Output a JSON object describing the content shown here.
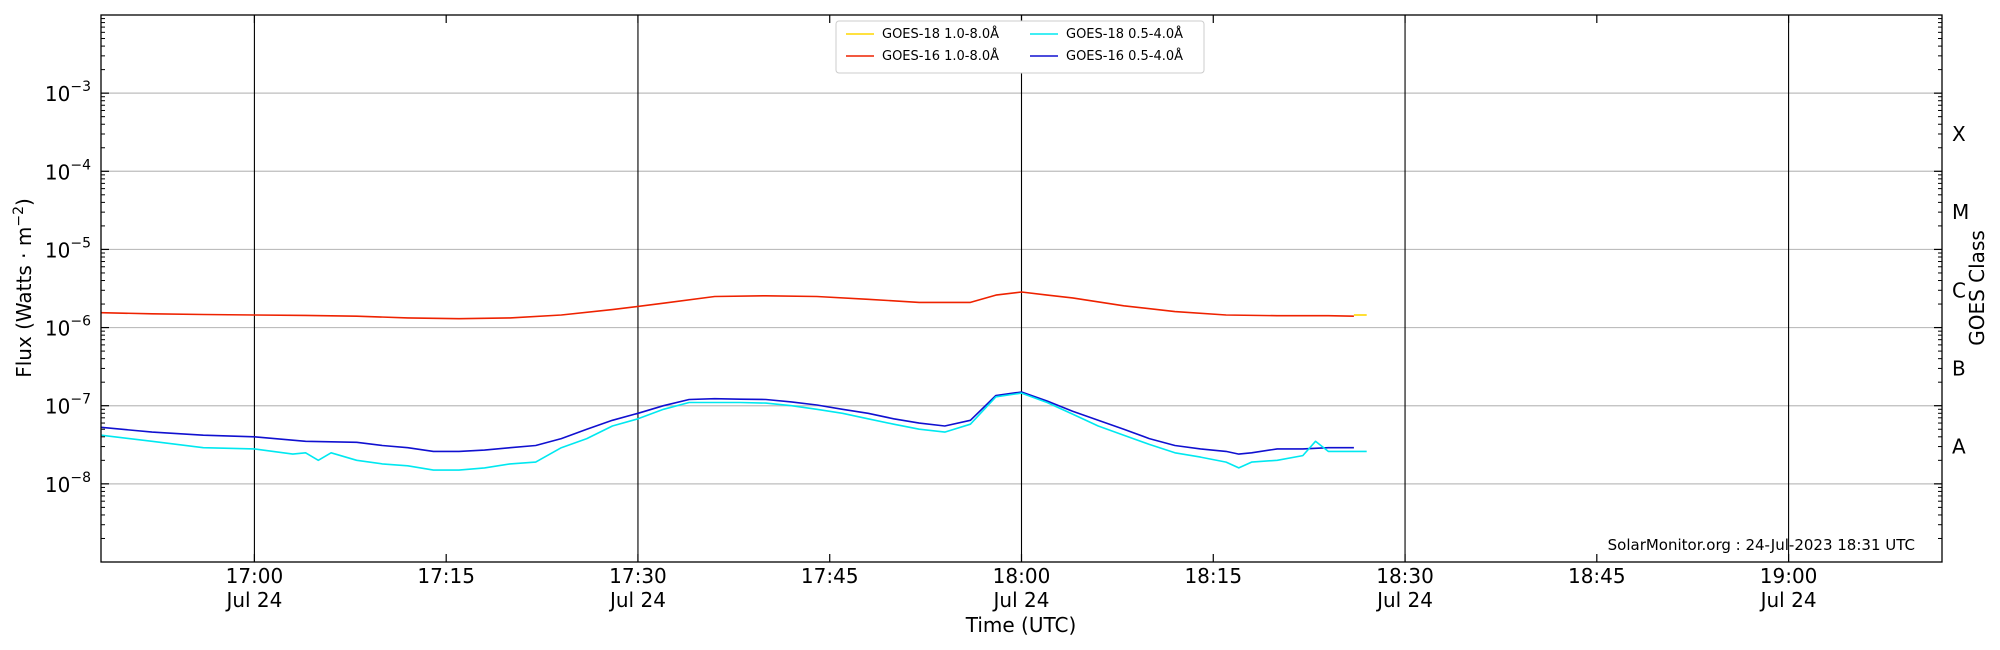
{
  "chart_data": {
    "type": "line",
    "title": "",
    "xlabel": "Time (UTC)",
    "ylabel": "Flux (Watts · m",
    "ylabel_sup": "−2",
    "ylabel_close": ")",
    "y2label": "GOES Class",
    "yscale": "log",
    "ylim": [
      "1e-9",
      "1e-2"
    ],
    "xlim": [
      "16:48",
      "19:12"
    ],
    "date": "Jul 24",
    "grid": "horizontal at decades",
    "legend_position": "top-center",
    "credit": "SolarMonitor.org : 24-Jul-2023 18:31 UTC",
    "y_ticks": [
      {
        "value": "1e-8",
        "base": "10",
        "exp": "−8"
      },
      {
        "value": "1e-7",
        "base": "10",
        "exp": "−7"
      },
      {
        "value": "1e-6",
        "base": "10",
        "exp": "−6"
      },
      {
        "value": "1e-5",
        "base": "10",
        "exp": "−5"
      },
      {
        "value": "1e-4",
        "base": "10",
        "exp": "−4"
      },
      {
        "value": "1e-3",
        "base": "10",
        "exp": "−3"
      }
    ],
    "x_ticks": [
      {
        "time": "17:00",
        "label": "17:00",
        "date": "Jul 24",
        "vline": true
      },
      {
        "time": "17:15",
        "label": "17:15",
        "date": "",
        "vline": false
      },
      {
        "time": "17:30",
        "label": "17:30",
        "date": "Jul 24",
        "vline": true
      },
      {
        "time": "17:45",
        "label": "17:45",
        "date": "",
        "vline": false
      },
      {
        "time": "18:00",
        "label": "18:00",
        "date": "Jul 24",
        "vline": true
      },
      {
        "time": "18:15",
        "label": "18:15",
        "date": "",
        "vline": false
      },
      {
        "time": "18:30",
        "label": "18:30",
        "date": "Jul 24",
        "vline": true
      },
      {
        "time": "18:45",
        "label": "18:45",
        "date": "",
        "vline": false
      },
      {
        "time": "19:00",
        "label": "19:00",
        "date": "Jul 24",
        "vline": true
      }
    ],
    "goes_classes": [
      {
        "label": "A",
        "flux": "3e-8"
      },
      {
        "label": "B",
        "flux": "3e-7"
      },
      {
        "label": "C",
        "flux": "3e-6"
      },
      {
        "label": "M",
        "flux": "3e-5"
      },
      {
        "label": "X",
        "flux": "3e-4"
      }
    ],
    "series": [
      {
        "name": "GOES-18 1.0-8.0Å",
        "color": "#ffd700",
        "x": [
          "18:26",
          "18:27"
        ],
        "y": [
          1.45e-06,
          1.45e-06
        ]
      },
      {
        "name": "GOES-16 1.0-8.0Å",
        "color": "#ee2200",
        "x": [
          "16:48",
          "16:52",
          "16:56",
          "17:00",
          "17:04",
          "17:08",
          "17:12",
          "17:16",
          "17:20",
          "17:24",
          "17:28",
          "17:32",
          "17:36",
          "17:40",
          "17:44",
          "17:48",
          "17:52",
          "17:56",
          "17:58",
          "18:00",
          "18:02",
          "18:04",
          "18:08",
          "18:12",
          "18:16",
          "18:20",
          "18:24",
          "18:26"
        ],
        "y": [
          1.55e-06,
          1.5e-06,
          1.47e-06,
          1.45e-06,
          1.43e-06,
          1.4e-06,
          1.33e-06,
          1.3e-06,
          1.33e-06,
          1.45e-06,
          1.7e-06,
          2.05e-06,
          2.5e-06,
          2.55e-06,
          2.5e-06,
          2.3e-06,
          2.1e-06,
          2.1e-06,
          2.6e-06,
          2.85e-06,
          2.6e-06,
          2.4e-06,
          1.9e-06,
          1.6e-06,
          1.45e-06,
          1.42e-06,
          1.42e-06,
          1.4e-06
        ]
      },
      {
        "name": "GOES-18 0.5-4.0Å",
        "color": "#00e8f0",
        "x": [
          "16:48",
          "16:52",
          "16:56",
          "17:00",
          "17:03",
          "17:04",
          "17:05",
          "17:06",
          "17:08",
          "17:10",
          "17:12",
          "17:14",
          "17:16",
          "17:18",
          "17:20",
          "17:22",
          "17:24",
          "17:26",
          "17:28",
          "17:30",
          "17:32",
          "17:34",
          "17:36",
          "17:38",
          "17:40",
          "17:42",
          "17:44",
          "17:46",
          "17:48",
          "17:50",
          "17:52",
          "17:54",
          "17:56",
          "17:58",
          "18:00",
          "18:02",
          "18:04",
          "18:06",
          "18:08",
          "18:10",
          "18:12",
          "18:14",
          "18:16",
          "18:17",
          "18:18",
          "18:20",
          "18:22",
          "18:23",
          "18:24",
          "18:26",
          "18:27"
        ],
        "y": [
          4.2e-08,
          3.5e-08,
          2.9e-08,
          2.8e-08,
          2.4e-08,
          2.5e-08,
          2e-08,
          2.5e-08,
          2e-08,
          1.8e-08,
          1.7e-08,
          1.5e-08,
          1.5e-08,
          1.6e-08,
          1.8e-08,
          1.9e-08,
          2.9e-08,
          3.8e-08,
          5.5e-08,
          6.8e-08,
          9e-08,
          1.1e-07,
          1.1e-07,
          1.1e-07,
          1.08e-07,
          1e-07,
          9e-08,
          8e-08,
          6.8e-08,
          5.8e-08,
          5e-08,
          4.6e-08,
          5.8e-08,
          1.3e-07,
          1.45e-07,
          1.1e-07,
          7.8e-08,
          5.5e-08,
          4.2e-08,
          3.2e-08,
          2.5e-08,
          2.2e-08,
          1.9e-08,
          1.6e-08,
          1.9e-08,
          2e-08,
          2.3e-08,
          3.5e-08,
          2.6e-08,
          2.6e-08,
          2.6e-08
        ]
      },
      {
        "name": "GOES-16 0.5-4.0Å",
        "color": "#1010d0",
        "x": [
          "16:48",
          "16:52",
          "16:56",
          "17:00",
          "17:04",
          "17:08",
          "17:10",
          "17:12",
          "17:14",
          "17:16",
          "17:18",
          "17:20",
          "17:22",
          "17:24",
          "17:26",
          "17:28",
          "17:30",
          "17:32",
          "17:34",
          "17:36",
          "17:38",
          "17:40",
          "17:42",
          "17:44",
          "17:46",
          "17:48",
          "17:50",
          "17:52",
          "17:54",
          "17:56",
          "17:58",
          "18:00",
          "18:02",
          "18:04",
          "18:06",
          "18:08",
          "18:10",
          "18:12",
          "18:14",
          "18:16",
          "18:17",
          "18:18",
          "18:20",
          "18:22",
          "18:24",
          "18:26"
        ],
        "y": [
          5.3e-08,
          4.6e-08,
          4.2e-08,
          4e-08,
          3.5e-08,
          3.4e-08,
          3.1e-08,
          2.9e-08,
          2.6e-08,
          2.6e-08,
          2.7e-08,
          2.9e-08,
          3.1e-08,
          3.8e-08,
          5e-08,
          6.5e-08,
          8e-08,
          1e-07,
          1.2e-07,
          1.23e-07,
          1.21e-07,
          1.2e-07,
          1.12e-07,
          1.02e-07,
          9e-08,
          8e-08,
          6.8e-08,
          6e-08,
          5.5e-08,
          6.5e-08,
          1.35e-07,
          1.5e-07,
          1.15e-07,
          8.5e-08,
          6.5e-08,
          5e-08,
          3.8e-08,
          3.1e-08,
          2.8e-08,
          2.6e-08,
          2.4e-08,
          2.5e-08,
          2.8e-08,
          2.8e-08,
          2.9e-08,
          2.9e-08
        ]
      }
    ]
  }
}
